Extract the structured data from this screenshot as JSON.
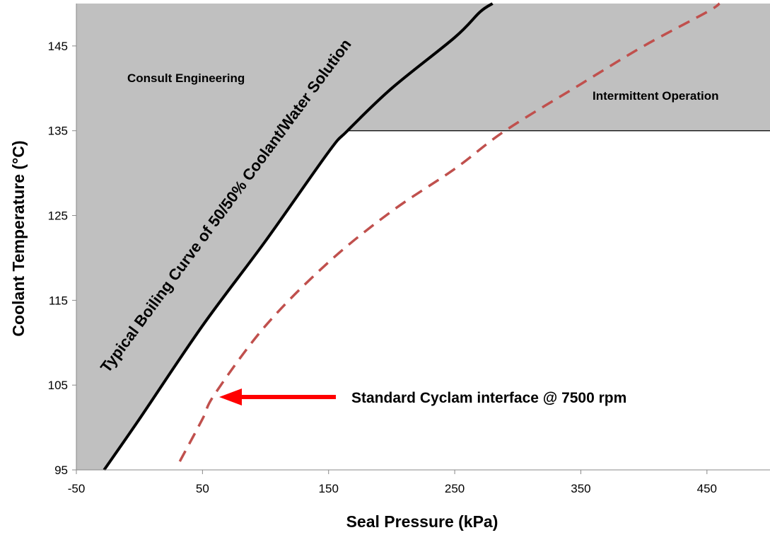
{
  "chart_data": {
    "type": "line",
    "title": "",
    "xlabel": "Seal Pressure  (kPa)",
    "ylabel": "Coolant  Temperature  (°C)",
    "xlim": [
      -50,
      500
    ],
    "ylim": [
      95,
      150
    ],
    "xticks": [
      "-50",
      "50",
      "150",
      "250",
      "350",
      "450"
    ],
    "yticks": [
      "95",
      "105",
      "115",
      "125",
      "135",
      "145"
    ],
    "grid": false,
    "series": [
      {
        "name": "Typical Boiling Curve of 50/50% Coolant/Water Solution",
        "style": "solid",
        "color": "#000000",
        "points": [
          [
            -28,
            95
          ],
          [
            0,
            101
          ],
          [
            50,
            112
          ],
          [
            100,
            122
          ],
          [
            150,
            132.5
          ],
          [
            165,
            135
          ],
          [
            200,
            140
          ],
          [
            250,
            146
          ],
          [
            270,
            149
          ],
          [
            280,
            150
          ]
        ]
      },
      {
        "name": "Standard Cyclam interface @ 7500 rpm",
        "style": "dashed",
        "color": "#c0504d",
        "points": [
          [
            32,
            96
          ],
          [
            50,
            101
          ],
          [
            60,
            104
          ],
          [
            100,
            112
          ],
          [
            150,
            119.5
          ],
          [
            200,
            125.5
          ],
          [
            250,
            130.5
          ],
          [
            290,
            135
          ],
          [
            350,
            140.5
          ],
          [
            400,
            145
          ],
          [
            450,
            149
          ],
          [
            460,
            150
          ]
        ]
      }
    ],
    "regions": [
      {
        "label": "Consult Engineering",
        "color": "#c0c0c0"
      },
      {
        "label": "Intermittent Operation",
        "color": "#c0c0c0",
        "boundary_y": 135
      }
    ],
    "annotations": {
      "consult": "Consult Engineering",
      "intermittent": "Intermittent Operation",
      "boiling_curve": "Typical Boiling Curve of 50/50% Coolant/Water Solution",
      "interface": "Standard Cyclam interface @ 7500 rpm",
      "arrow_target": [
        60,
        104
      ]
    }
  }
}
